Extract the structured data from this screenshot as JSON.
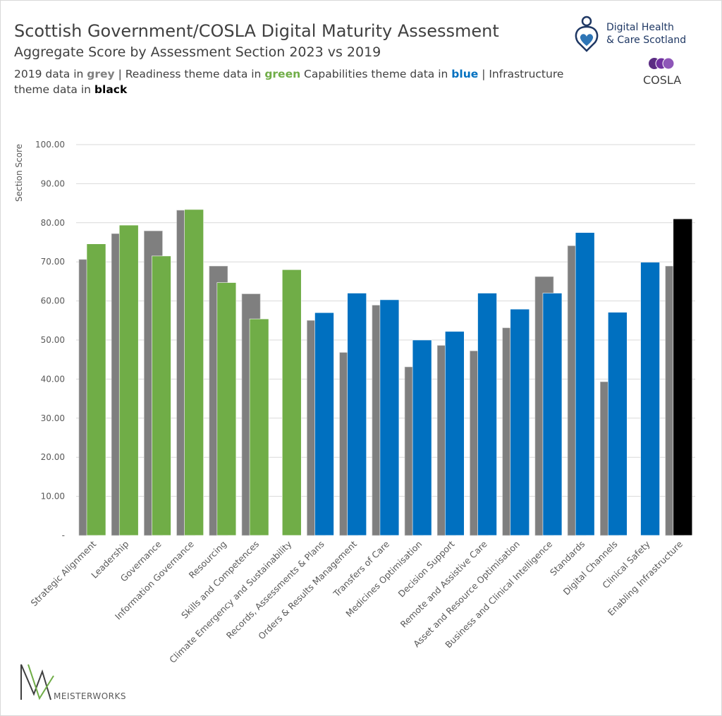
{
  "header": {
    "title": "Scottish Government/COSLA Digital Maturity Assessment",
    "subtitle": "Aggregate Score by Assessment Section 2023 vs 2019",
    "legend_parts": [
      "2019 data in ",
      "grey",
      " | Readiness theme data in ",
      "green",
      " Capabilities theme data in ",
      "blue",
      " | Infrastructure theme data in ",
      "black"
    ]
  },
  "logos": {
    "dhcs": "Digital Health & Care Scotland",
    "dhcs_line1": "Digital Health",
    "dhcs_line2": "& Care Scotland",
    "cosla": "COSLA",
    "meisterworks": "MEISTERWORKS"
  },
  "colors": {
    "grey": "#7f7f7f",
    "green": "#70ad47",
    "blue": "#0070c0",
    "black": "#000000",
    "grid": "#d9d9d9",
    "text": "#595959"
  },
  "chart_data": {
    "type": "bar",
    "title": "Scottish Government/COSLA Digital Maturity Assessment",
    "subtitle": "Aggregate Score by Assessment Section 2023 vs 2019",
    "ylabel": "Section Score",
    "xlabel": "",
    "ylim": [
      0,
      100
    ],
    "yticks": [
      "-",
      "10.00",
      "20.00",
      "30.00",
      "40.00",
      "50.00",
      "60.00",
      "70.00",
      "80.00",
      "90.00",
      "100.00"
    ],
    "grid": true,
    "categories": [
      "Strategic Alignment",
      "Leadership",
      "Governance",
      "Information Governance",
      "Resourcing",
      "Skills and Competences",
      "Climate Emergency and Sustainability",
      "Records, Assessments & Plans",
      "Orders & Results Management",
      "Transfers of Care",
      "Medicines Optimisation",
      "Decision Support",
      "Remote and Assistive Care",
      "Asset and Resource Optimisation",
      "Business and Clinical Intelligence",
      "Standards",
      "Digital Channels",
      "Clinical Safety",
      "Enabling Infrastructure"
    ],
    "themes": [
      "readiness",
      "readiness",
      "readiness",
      "readiness",
      "readiness",
      "readiness",
      "readiness",
      "capabilities",
      "capabilities",
      "capabilities",
      "capabilities",
      "capabilities",
      "capabilities",
      "capabilities",
      "capabilities",
      "capabilities",
      "capabilities",
      "capabilities",
      "infrastructure"
    ],
    "series": [
      {
        "name": "2019",
        "values": [
          70.6,
          77.2,
          77.9,
          83.2,
          68.9,
          61.8,
          null,
          55.0,
          46.8,
          58.9,
          43.1,
          48.6,
          47.2,
          53.1,
          66.2,
          74.1,
          39.3,
          null,
          68.9
        ]
      },
      {
        "name": "2023",
        "values": [
          74.6,
          79.4,
          71.5,
          83.4,
          64.7,
          55.4,
          68.0,
          57.0,
          62.0,
          60.3,
          50.0,
          52.2,
          62.0,
          57.9,
          62.0,
          77.5,
          57.1,
          69.9,
          81.0
        ]
      }
    ]
  }
}
